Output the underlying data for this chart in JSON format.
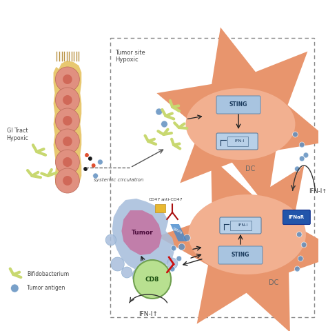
{
  "bg_color": "#ffffff",
  "gi_tract_label": "GI Tract\nHypoxic",
  "tumor_site_label": "Tumor site\nHypoxic",
  "systemic_circulation_label": "systemic circulation",
  "dc_color": "#E8956D",
  "dc_nucleus_color": "#F2B090",
  "sting_box_color": "#A8C4E0",
  "ifn_box_color": "#B8D0E8",
  "tumor_cell_color": "#C17EAA",
  "tumor_bg_color": "#A8BEDC",
  "cd8_color": "#B8E090",
  "gi_cell_color": "#E8C870",
  "gi_circle_color": "#E09080",
  "bifidobacterium_color": "#C8D870",
  "tumor_antigen_color": "#6090C0",
  "ifnar_color": "#2255AA",
  "cd47_color": "#E8B830",
  "sirpa_color": "#4488CC",
  "legend_bifido_label": "Bifidobacterium",
  "legend_antigen_label": "Tumor antigen"
}
